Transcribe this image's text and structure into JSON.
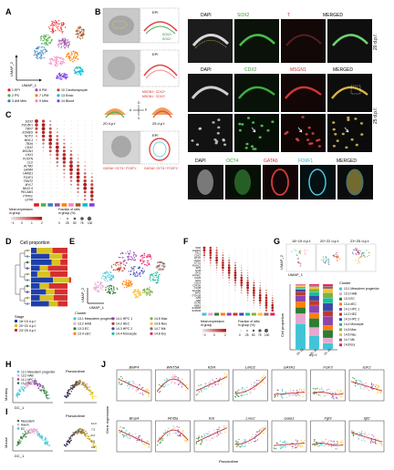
{
  "panels": {
    "A": {
      "letter": "A",
      "axis_x": "UMAP_1",
      "axis_y": "UMAP_2",
      "legend": [
        "1 EPI",
        "2 PS",
        "3 AM Mes",
        "6 PM",
        "7 LPM",
        "9 Mes",
        "10 Cardiomyocyte",
        "13 Endo",
        "14 Blood"
      ],
      "colors": [
        "#e41a1c",
        "#4daf4a",
        "#377eb8",
        "#984ea3",
        "#ff7f00",
        "#f781bf",
        "#a65628",
        "#00bcd4",
        "#7b3fe4"
      ]
    },
    "B": {
      "letter": "B",
      "sub_epi1": "EPI",
      "sub_epi2": "EPI",
      "sub_epi3": "EPI",
      "marker_sox2_plus": "SOX2⁺",
      "marker_sox2_minus": "SOX2⁻",
      "marker_msgn1": "MSGN1⁺ CDX2⁺",
      "marker_cdx2": "MSGN1⁻ CDX2⁺",
      "marker_oct4_a": "GATA6⁺ OCT4⁺ FOXF1⁻",
      "marker_oct4_b": "GATA6⁺ OCT4⁺ FOXF1⁺",
      "stage_20": "20 d.p.f.",
      "stage_25": "25 d.p.f.",
      "axis_a": "A",
      "axis_p": "P",
      "axis_d": "D",
      "axis_v": "V",
      "row1_labels": [
        "DAPI",
        "SOX2",
        "T",
        "MERGED"
      ],
      "row1_stage": "20 d.p.f.",
      "row2_labels": [
        "DAPI",
        "CDX2",
        "MSGN1",
        "MERGED"
      ],
      "row2_stage": "25 d.p.f.",
      "row3_labels": [
        "DAPI",
        "OCT4",
        "GATA6",
        "FOXF1",
        "MERGED"
      ]
    },
    "C": {
      "letter": "C",
      "genes": [
        "SOX2",
        "POU5F1",
        "TBXT",
        "EOMES",
        "NOTO",
        "MIXL1",
        "TBX6",
        "CDX2",
        "MSGN1",
        "LHX1",
        "POSTN",
        "CLU",
        "ACTA2",
        "GATA6",
        "HAND1",
        "FOXF1",
        "TNNT2",
        "MYL7",
        "NKX2-5",
        "PECAM1",
        "PTPRC",
        "GYPA"
      ],
      "mean_label": "Mean expression\nin group",
      "frac_label": "Fraction of cells\nin group (%)",
      "mean_ticks": [
        "−1",
        "0",
        "1",
        "2"
      ],
      "frac_ticks": [
        "0",
        "25",
        "50",
        "75",
        "100"
      ]
    },
    "D": {
      "letter": "D",
      "title": "Cell proportion",
      "stage_title": "Stage",
      "stages": [
        "18−19 d.p.f.",
        "20−22 d.p.f.",
        "23−25 d.p.f."
      ]
    },
    "E": {
      "letter": "E",
      "axis_x": "UMAP_1",
      "axis_y": "UMAP_2",
      "cluster_title": "Cluster",
      "clusters": [
        "13.1 Mesoderm progenitor",
        "13.2 HAB",
        "13.3 EC",
        "13.4 eEC",
        "14.1 HPC 1",
        "14.2 HEC",
        "14.3 HPC 2",
        "14.4 Monocyte",
        "14.5 Mac",
        "14.6 Neu",
        "14.7 Mk",
        "14.8 Ery"
      ]
    },
    "F": {
      "letter": "F",
      "genes": [
        "KDR",
        "HAND1",
        "TAL1",
        "CDX2",
        "ETV2",
        "LMO2",
        "ETS1",
        "RUNX1",
        "SPN",
        "MYB",
        "GFI1",
        "PTPRC",
        "CD34",
        "SPI1",
        "CD14",
        "CSF1R",
        "C1QB",
        "ELANE",
        "MPO",
        "ITGA2B",
        "GP9",
        "HBZ",
        "GYPA",
        "HBE1",
        "S100A8",
        "S100A9"
      ],
      "mean_label": "Mean expression\nin group",
      "frac_label": "Fraction of cells\nin group (%)",
      "mean_ticks": [
        "−2",
        "0",
        "2"
      ],
      "frac_ticks": [
        "0",
        "25",
        "50",
        "75",
        "100"
      ]
    },
    "G": {
      "letter": "G",
      "stages": [
        "18−19 d.p.f.",
        "20−22 d.p.f.",
        "23−25 d.p.f."
      ],
      "axis_x": "UMAP_1",
      "axis_y": "UMAP_2",
      "yaxis": "Cell proportion",
      "xaxis": "d.p.f.",
      "bar_x": [
        "18−19",
        "20−22",
        "23−25"
      ],
      "legend_title": "Cluster",
      "legend": [
        "13.1 Mesoderm progenitor",
        "13.2 HAB",
        "13.3 EC",
        "13.4 eEC",
        "14.1 HPC 1",
        "14.2 HEC",
        "14.3 HPC 2",
        "14.4 Monocyte",
        "14.5 Mac",
        "14.6 Neu",
        "14.7 Mk",
        "14.8 Ery"
      ]
    },
    "H": {
      "letter": "H",
      "side": "Monkey",
      "legend": [
        "13.1 Mesoderm progenitor",
        "13.2 HAB",
        "14.1 HPC 1",
        "13.3 EC"
      ],
      "axis_x": "DC_1",
      "axis_y": "DC_2",
      "pseudo": "Pseudotime"
    },
    "I": {
      "letter": "I",
      "side": "Mouse",
      "legend": [
        "Mesoderm",
        "Haem",
        "EC"
      ],
      "axis_x": "DC_1",
      "axis_y": "DC_2",
      "pseudo": "Pseudotime",
      "pseudo_ticks": [
        "10.0",
        "7.5",
        "5.0",
        "2.5",
        "0.0"
      ]
    },
    "J": {
      "letter": "J",
      "monkey_genes": [
        "BMP4",
        "WNT5A",
        "KDR",
        "LMO2",
        "GATA1",
        "FGF3",
        "IGF2"
      ],
      "mouse_genes": [
        "Bmp4",
        "Wnt5a",
        "Kdr",
        "Lmo2",
        "Gata1",
        "Fgf3",
        "Igf2"
      ],
      "yaxis": "Gene expression",
      "xaxis": "Pseudotime"
    }
  }
}
